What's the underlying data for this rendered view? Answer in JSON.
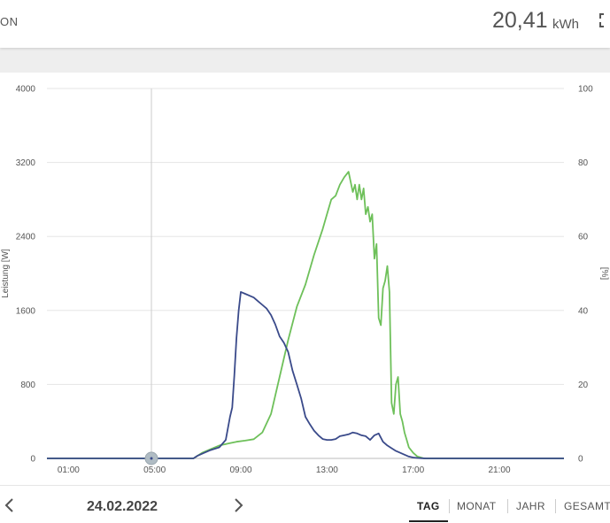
{
  "header": {
    "title_fragment": "ON",
    "energy_value": "20,41",
    "energy_unit": "kWh"
  },
  "footer": {
    "date": "24.02.2022",
    "tabs": [
      {
        "label": "TAG",
        "active": true
      },
      {
        "label": "MONAT",
        "active": false
      },
      {
        "label": "JAHR",
        "active": false
      },
      {
        "label": "GESAMT",
        "active": false
      }
    ]
  },
  "colors": {
    "series_1": "#3a4a8a",
    "series_2": "#6ec05a",
    "grid": "#e5e5e5",
    "cursor": "#cccccc"
  },
  "icons": [
    "expand-icon",
    "chevron-left-icon",
    "chevron-right-icon"
  ],
  "chart_data": {
    "type": "line",
    "ylabel_left": "Leistung [W]",
    "ylabel_right": "[%]",
    "ylim_left": [
      0,
      4000
    ],
    "ylim_right": [
      0,
      100
    ],
    "yticks_left": [
      "0",
      "800",
      "1600",
      "2400",
      "3200",
      "4000"
    ],
    "yticks_right": [
      "0",
      "20",
      "40",
      "60",
      "80",
      "100"
    ],
    "xlim_hours": [
      0,
      24
    ],
    "xticks": [
      {
        "label": "01:00",
        "hour": 1
      },
      {
        "label": "05:00",
        "hour": 5
      },
      {
        "label": "09:00",
        "hour": 9
      },
      {
        "label": "13:00",
        "hour": 13
      },
      {
        "label": "17:00",
        "hour": 17
      },
      {
        "label": "21:00",
        "hour": 21
      }
    ],
    "grid": true,
    "cursor_hour": 4.85,
    "series": [
      {
        "axis": "left",
        "color": "#3a4a8a",
        "x": [
          0,
          6.8,
          7.0,
          7.3,
          7.6,
          8.0,
          8.3,
          8.5,
          8.6,
          8.7,
          8.8,
          8.9,
          9.0,
          9.2,
          9.4,
          9.6,
          9.8,
          10.0,
          10.2,
          10.4,
          10.6,
          10.8,
          11.0,
          11.2,
          11.4,
          11.6,
          11.8,
          12.0,
          12.2,
          12.4,
          12.6,
          12.8,
          13.0,
          13.2,
          13.4,
          13.6,
          13.8,
          14.0,
          14.2,
          14.4,
          14.6,
          14.8,
          15.0,
          15.2,
          15.4,
          15.6,
          15.8,
          16.0,
          16.2,
          16.4,
          16.6,
          16.8,
          17.0,
          17.2,
          17.4,
          17.6,
          24
        ],
        "values": [
          0,
          0,
          30,
          60,
          90,
          120,
          200,
          450,
          550,
          900,
          1300,
          1600,
          1800,
          1780,
          1760,
          1740,
          1700,
          1660,
          1620,
          1550,
          1450,
          1320,
          1250,
          1150,
          950,
          800,
          650,
          450,
          370,
          300,
          250,
          210,
          200,
          200,
          210,
          240,
          250,
          260,
          280,
          270,
          250,
          240,
          200,
          250,
          270,
          180,
          140,
          110,
          80,
          60,
          40,
          20,
          10,
          5,
          2,
          0,
          0
        ]
      },
      {
        "axis": "right",
        "color": "#6ec05a",
        "x": [
          0,
          6.8,
          7.2,
          7.6,
          8.0,
          8.4,
          8.8,
          9.2,
          9.6,
          10.0,
          10.4,
          10.8,
          11.2,
          11.6,
          12.0,
          12.4,
          12.8,
          13.0,
          13.2,
          13.4,
          13.6,
          13.8,
          14.0,
          14.2,
          14.3,
          14.4,
          14.5,
          14.6,
          14.7,
          14.8,
          14.9,
          15.0,
          15.1,
          15.2,
          15.3,
          15.4,
          15.5,
          15.6,
          15.7,
          15.8,
          15.9,
          16.0,
          16.1,
          16.2,
          16.3,
          16.4,
          16.5,
          16.6,
          16.7,
          16.8,
          17.0,
          17.2,
          17.5,
          24
        ],
        "values": [
          0,
          0,
          1.5,
          2.5,
          3.5,
          4.0,
          4.5,
          4.8,
          5.2,
          7.0,
          12,
          22,
          32,
          41,
          47,
          55,
          62,
          66,
          70,
          71,
          74,
          76,
          77.5,
          72,
          74,
          70,
          74,
          70,
          73,
          66,
          68,
          64,
          66,
          54,
          58,
          38,
          36,
          46,
          48,
          52,
          45,
          15,
          12,
          20,
          22,
          12,
          10,
          7,
          5,
          3,
          1.5,
          0.5,
          0,
          0
        ]
      }
    ]
  }
}
